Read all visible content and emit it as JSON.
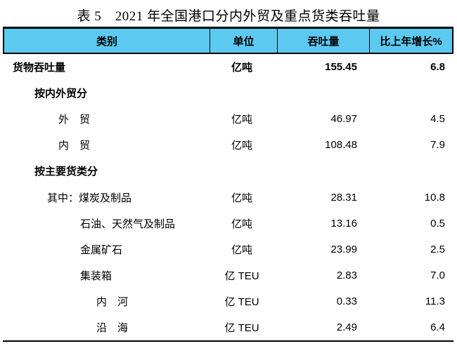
{
  "title": "表 5　2021 年全国港口分内外贸及重点货类吞吐量",
  "colors": {
    "header_bg": "#5CC9F0",
    "border": "#000000",
    "text": "#000000"
  },
  "table": {
    "header": {
      "category": "类别",
      "unit": "单位",
      "throughput": "吞吐量",
      "growth": "比上年增长%"
    },
    "rows": [
      {
        "category": "货物吞吐量",
        "unit": "亿吨",
        "throughput": "155.45",
        "growth": "6.8",
        "bold": true,
        "indent": 0
      },
      {
        "category": "按内外贸分",
        "unit": "",
        "throughput": "",
        "growth": "",
        "bold": true,
        "indent": 1
      },
      {
        "category": "外　贸",
        "unit": "亿吨",
        "throughput": "46.97",
        "growth": "4.5",
        "bold": false,
        "indent": 2
      },
      {
        "category": "内　贸",
        "unit": "亿吨",
        "throughput": "108.48",
        "growth": "7.9",
        "bold": false,
        "indent": 2
      },
      {
        "category": "按主要货类分",
        "unit": "",
        "throughput": "",
        "growth": "",
        "bold": true,
        "indent": 1
      },
      {
        "category": "其中：煤炭及制品",
        "unit": "亿吨",
        "throughput": "28.31",
        "growth": "10.8",
        "bold": false,
        "indent": 3
      },
      {
        "category": "石油、天然气及制品",
        "unit": "亿吨",
        "throughput": "13.16",
        "growth": "0.5",
        "bold": false,
        "indent": 4
      },
      {
        "category": "金属矿石",
        "unit": "亿吨",
        "throughput": "23.99",
        "growth": "2.5",
        "bold": false,
        "indent": 4
      },
      {
        "category": "集装箱",
        "unit": "亿 TEU",
        "throughput": "2.83",
        "growth": "7.0",
        "bold": false,
        "indent": 4
      },
      {
        "category": "内　河",
        "unit": "亿 TEU",
        "throughput": "0.33",
        "growth": "11.3",
        "bold": false,
        "indent": 5
      },
      {
        "category": "沿　海",
        "unit": "亿 TEU",
        "throughput": "2.49",
        "growth": "6.4",
        "bold": false,
        "indent": 5
      }
    ]
  }
}
